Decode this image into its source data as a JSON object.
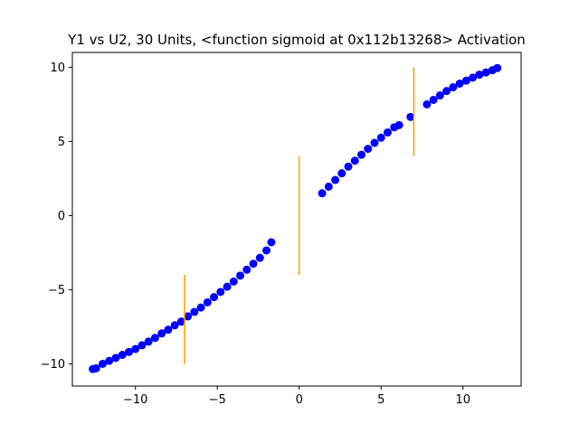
{
  "chart_data": {
    "type": "scatter",
    "title": "Y1 vs U2, 30 Units, <function sigmoid at 0x112b13268> Activation",
    "xlabel": "",
    "ylabel": "",
    "xlim": [
      -13.85,
      13.55
    ],
    "ylim": [
      -11.5,
      11.0
    ],
    "xticks": [
      -10,
      -5,
      0,
      5,
      10
    ],
    "yticks": [
      -10,
      -5,
      0,
      5,
      10
    ],
    "xtick_labels": [
      "−10",
      "−5",
      "0",
      "5",
      "10"
    ],
    "ytick_labels": [
      "−10",
      "−5",
      "0",
      "5",
      "10"
    ],
    "grid": false,
    "colors": {
      "points": "#0000ff",
      "vlines": "#ffa500",
      "axes": "#000000"
    },
    "series": [
      {
        "marker": "circle",
        "points": [
          [
            -12.6,
            -10.35
          ],
          [
            -12.4,
            -10.3
          ],
          [
            -12.0,
            -10.0
          ],
          [
            -11.6,
            -9.8
          ],
          [
            -11.2,
            -9.6
          ],
          [
            -10.8,
            -9.4
          ],
          [
            -10.4,
            -9.2
          ],
          [
            -10.0,
            -9.0
          ],
          [
            -9.6,
            -8.75
          ],
          [
            -9.2,
            -8.5
          ],
          [
            -8.8,
            -8.25
          ],
          [
            -8.4,
            -7.95
          ],
          [
            -8.0,
            -7.7
          ],
          [
            -7.6,
            -7.4
          ],
          [
            -7.2,
            -7.15
          ],
          [
            -6.8,
            -6.8
          ],
          [
            -6.4,
            -6.5
          ],
          [
            -6.0,
            -6.2
          ],
          [
            -5.6,
            -5.85
          ],
          [
            -5.2,
            -5.5
          ],
          [
            -4.8,
            -5.15
          ],
          [
            -4.4,
            -4.8
          ],
          [
            -4.0,
            -4.45
          ],
          [
            -3.6,
            -4.05
          ],
          [
            -3.2,
            -3.65
          ],
          [
            -2.8,
            -3.25
          ],
          [
            -2.4,
            -2.85
          ],
          [
            -2.0,
            -2.35
          ],
          [
            -1.7,
            -1.8
          ],
          [
            1.4,
            1.5
          ],
          [
            1.8,
            1.95
          ],
          [
            2.2,
            2.4
          ],
          [
            2.6,
            2.85
          ],
          [
            3.0,
            3.3
          ],
          [
            3.4,
            3.7
          ],
          [
            3.8,
            4.1
          ],
          [
            4.2,
            4.5
          ],
          [
            4.6,
            4.9
          ],
          [
            5.0,
            5.25
          ],
          [
            5.4,
            5.6
          ],
          [
            5.8,
            5.95
          ],
          [
            6.1,
            6.1
          ],
          [
            6.8,
            6.65
          ],
          [
            7.8,
            7.5
          ],
          [
            8.2,
            7.8
          ],
          [
            8.6,
            8.1
          ],
          [
            9.0,
            8.4
          ],
          [
            9.4,
            8.65
          ],
          [
            9.8,
            8.9
          ],
          [
            10.2,
            9.1
          ],
          [
            10.6,
            9.3
          ],
          [
            11.0,
            9.5
          ],
          [
            11.4,
            9.65
          ],
          [
            11.8,
            9.8
          ],
          [
            12.1,
            9.95
          ]
        ]
      }
    ],
    "vertical_lines": [
      {
        "x": -7,
        "y": [
          -10,
          -4
        ]
      },
      {
        "x": 0,
        "y": [
          -4,
          4
        ]
      },
      {
        "x": 7,
        "y": [
          4,
          10
        ]
      }
    ]
  }
}
